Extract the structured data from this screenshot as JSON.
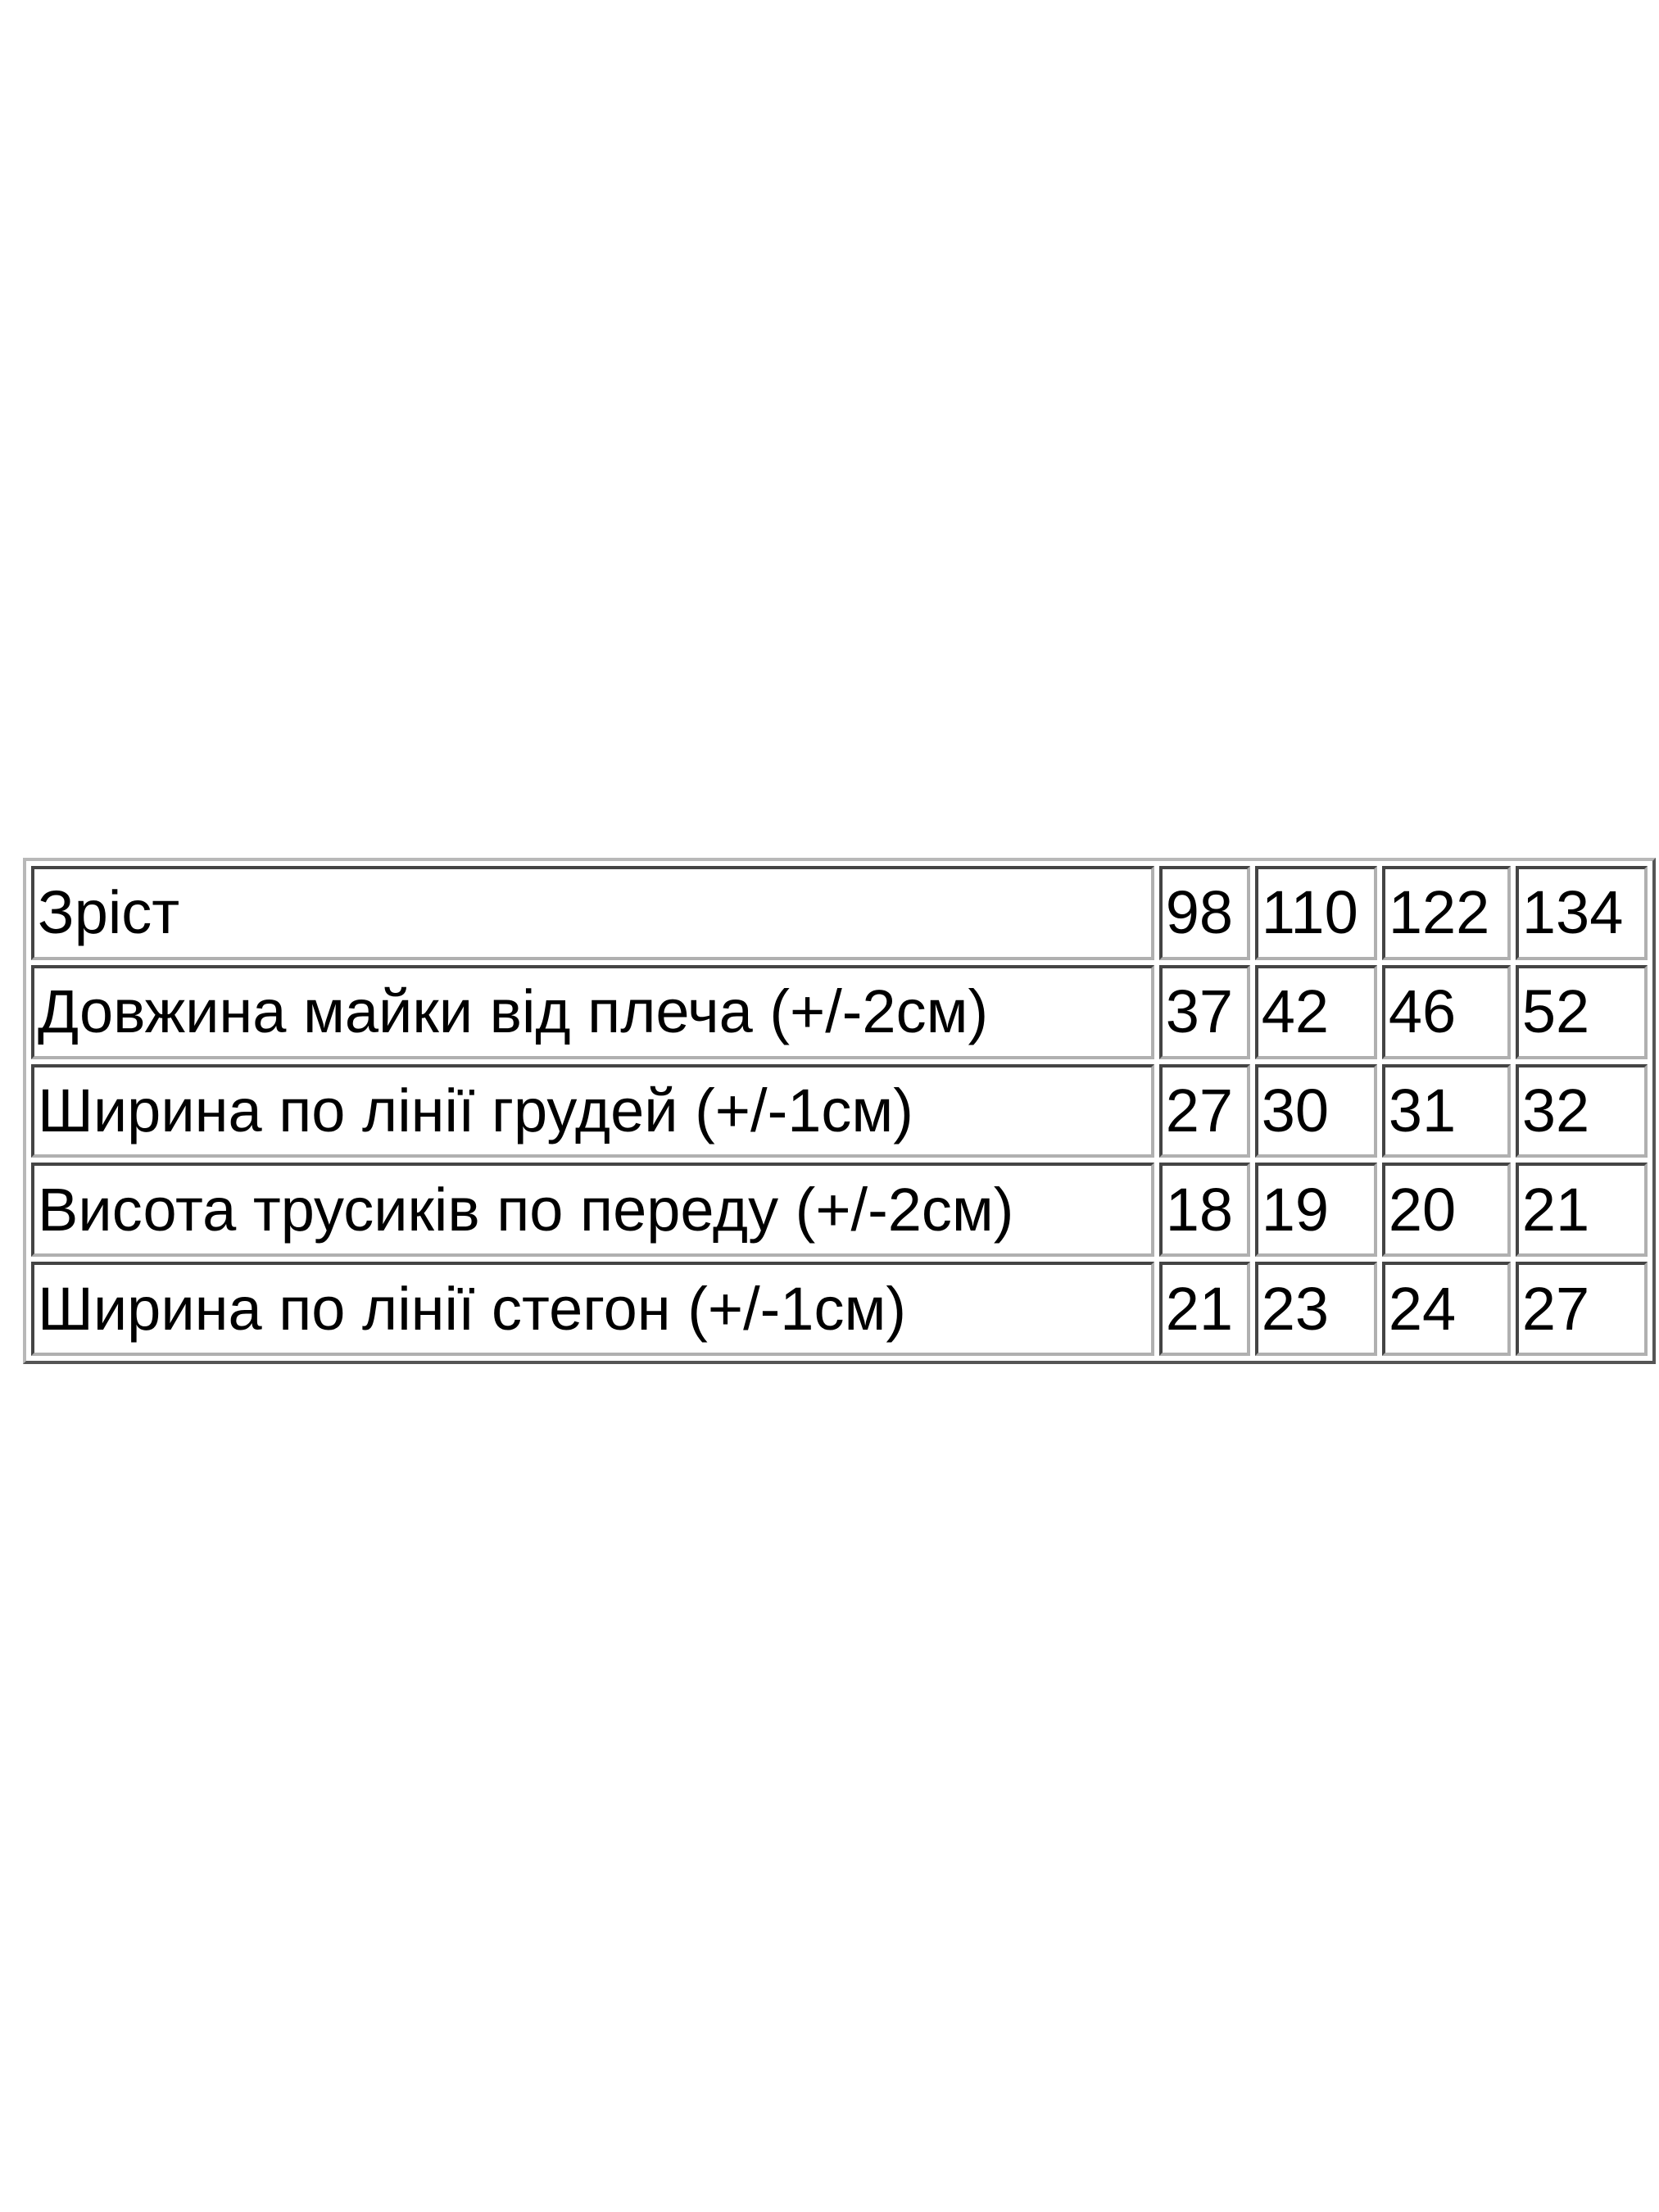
{
  "table": {
    "header": {
      "label": "Зріст",
      "sizes": [
        "98",
        "110",
        "122",
        "134"
      ]
    },
    "rows": [
      {
        "label": "Довжина майки від плеча (+/-2см)",
        "values": [
          "37",
          "42",
          "46",
          "52"
        ]
      },
      {
        "label": "Ширина по лінії грудей (+/-1см)",
        "values": [
          "27",
          "30",
          "31",
          "32"
        ]
      },
      {
        "label": "Висота трусиків по переду (+/-2см)",
        "values": [
          "18",
          "19",
          "20",
          "21"
        ]
      },
      {
        "label": "Ширина по лінії стегон (+/-1см)",
        "values": [
          "21",
          "23",
          "24",
          "27"
        ]
      }
    ]
  }
}
